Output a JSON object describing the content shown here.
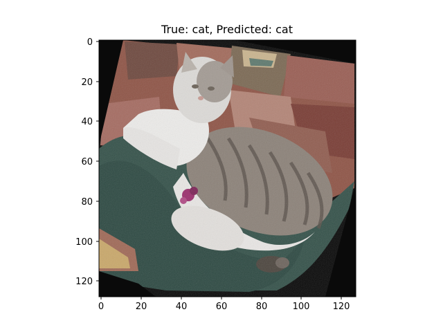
{
  "figure": {
    "title": "True: cat, Predicted: cat",
    "image_description_hidden": null
  },
  "axes": {
    "x_ticks": [
      "0",
      "20",
      "40",
      "60",
      "80",
      "100",
      "120"
    ],
    "y_ticks": [
      "0",
      "20",
      "40",
      "60",
      "80",
      "100",
      "120"
    ],
    "x_range": [
      0,
      127
    ],
    "y_range": [
      0,
      127
    ]
  },
  "colors": {
    "background_fill": "#0a0a0a",
    "green_blanket": "#35524a",
    "quilt_red": "#8a4a3e",
    "quilt_pink": "#b07e73",
    "cat_white": "#e8e6e4",
    "cat_gray": "#8c8279",
    "cat_stripes": "#5b524b",
    "toy_purple": "#9b2f6d"
  }
}
